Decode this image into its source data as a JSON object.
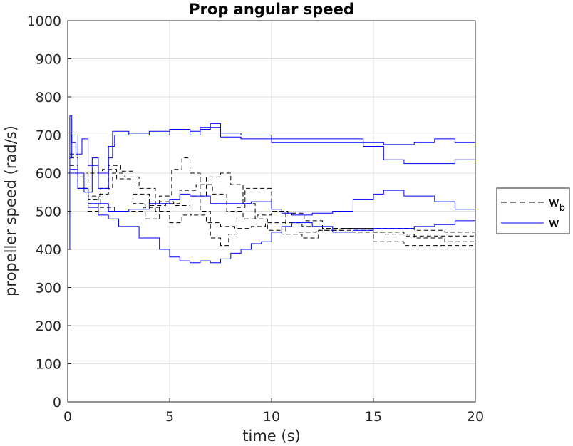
{
  "chart_data": {
    "type": "line",
    "title": "Prop angular speed",
    "xlabel": "time (s)",
    "ylabel": "propeller speed (rad/s)",
    "xlim": [
      0,
      20
    ],
    "ylim": [
      0,
      1000
    ],
    "x_ticks": [
      0,
      5,
      10,
      15,
      20
    ],
    "y_ticks": [
      0,
      100,
      200,
      300,
      400,
      500,
      600,
      700,
      800,
      900,
      1000
    ],
    "x_tick_labels": [
      "0",
      "5",
      "10",
      "15",
      "20"
    ],
    "y_tick_labels": [
      "0",
      "100",
      "200",
      "300",
      "400",
      "500",
      "600",
      "700",
      "800",
      "900",
      "1000"
    ],
    "grid": true,
    "legend": {
      "placement": "outside-right",
      "entries": [
        {
          "label": "w",
          "subscript": "b",
          "style": "dashed",
          "color": "#000000"
        },
        {
          "label": "w",
          "subscript": "",
          "style": "solid",
          "color": "#0000ff"
        }
      ]
    },
    "series": [
      {
        "group": "w_b",
        "color": "#000000",
        "style": "dashed",
        "x": [
          0.1,
          0.5,
          1.0,
          1.6,
          2.3,
          3.0,
          3.7,
          4.5,
          5.2,
          6.0,
          6.8,
          7.5,
          8.2,
          9.0,
          9.7,
          10.5,
          11.5,
          12.5,
          14,
          15.5,
          17,
          18.5,
          20
        ],
        "y": [
          600,
          560,
          530,
          510,
          500,
          500,
          510,
          525,
          515,
          490,
          470,
          460,
          455,
          460,
          470,
          470,
          460,
          455,
          455,
          455,
          450,
          445,
          430
        ]
      },
      {
        "group": "w_b",
        "color": "#000000",
        "style": "dashed",
        "x": [
          0.1,
          0.5,
          1.0,
          1.7,
          2.4,
          3.2,
          4.0,
          4.8,
          5.5,
          6.3,
          7.1,
          7.8,
          8.6,
          9.3,
          10.0,
          10.8,
          11.6,
          12.5,
          14,
          15.5,
          17,
          18.5,
          20
        ],
        "y": [
          620,
          590,
          600,
          610,
          585,
          545,
          515,
          520,
          555,
          570,
          545,
          500,
          480,
          490,
          500,
          495,
          475,
          455,
          445,
          440,
          430,
          420,
          415
        ]
      },
      {
        "group": "w_b",
        "color": "#000000",
        "style": "dashed",
        "x": [
          0.1,
          0.5,
          1.0,
          1.6,
          2.2,
          2.8,
          3.5,
          4.3,
          5.0,
          5.6,
          6.1,
          6.8,
          7.5,
          8.0,
          8.6,
          9.2,
          9.8,
          10.5,
          11.3,
          12.2,
          13.5,
          15,
          16.5,
          18,
          20
        ],
        "y": [
          650,
          600,
          540,
          560,
          600,
          590,
          560,
          500,
          470,
          490,
          540,
          590,
          600,
          570,
          520,
          480,
          450,
          440,
          445,
          450,
          450,
          445,
          435,
          435,
          430
        ]
      },
      {
        "group": "w_b",
        "color": "#000000",
        "style": "dashed",
        "x": [
          0.1,
          0.5,
          1.0,
          1.5,
          2.0,
          2.6,
          3.2,
          3.8,
          4.5,
          5.1,
          5.6,
          6.0,
          6.5,
          7.0,
          7.5,
          7.9,
          8.3,
          8.7,
          9.3,
          10.0,
          10.7,
          11.5,
          12.3,
          13.5,
          15,
          16.5,
          18,
          20
        ],
        "y": [
          640,
          560,
          500,
          545,
          620,
          605,
          520,
          480,
          540,
          610,
          640,
          600,
          500,
          430,
          410,
          440,
          510,
          560,
          560,
          500,
          440,
          430,
          450,
          455,
          420,
          410,
          410,
          415
        ]
      },
      {
        "group": "w",
        "color": "#0000ff",
        "style": "solid",
        "x": [
          0.0,
          0.1,
          0.2,
          0.4,
          0.7,
          1.0,
          1.5,
          2.0,
          2.3,
          3.0,
          4.0,
          5.0,
          6.0,
          6.5,
          7.0,
          7.5,
          8.5,
          10.0,
          11.0,
          12.0,
          13.5,
          14.5,
          15.5,
          17.0,
          18.0,
          19.0,
          20.0
        ],
        "y": [
          400,
          750,
          680,
          650,
          690,
          620,
          600,
          670,
          700,
          705,
          710,
          715,
          710,
          715,
          720,
          705,
          700,
          690,
          690,
          690,
          690,
          680,
          675,
          680,
          690,
          680,
          660
        ]
      },
      {
        "group": "w",
        "color": "#0000ff",
        "style": "solid",
        "x": [
          0.1,
          0.2,
          0.5,
          0.8,
          1.2,
          1.5,
          2.0,
          2.2,
          3.0,
          4.0,
          5.0,
          6.0,
          6.5,
          7.0,
          7.5,
          8.5,
          10.0,
          11.0,
          12.0,
          13.5,
          14.5,
          15.5,
          16.5,
          18.0,
          19.0,
          20.0
        ],
        "y": [
          640,
          700,
          600,
          550,
          640,
          560,
          640,
          710,
          705,
          700,
          715,
          700,
          720,
          730,
          695,
          690,
          680,
          680,
          680,
          680,
          670,
          635,
          625,
          625,
          635,
          645
        ]
      },
      {
        "group": "w",
        "color": "#0000ff",
        "style": "solid",
        "x": [
          0.1,
          0.5,
          1.0,
          2.0,
          3.0,
          4.0,
          5.0,
          5.5,
          6.0,
          7.0,
          8.0,
          9.0,
          10.0,
          10.5,
          11.0,
          12.0,
          13.0,
          14.0,
          15.0,
          15.5,
          16.5,
          18.0,
          19.0,
          20.0
        ],
        "y": [
          600,
          560,
          520,
          500,
          505,
          520,
          530,
          545,
          540,
          520,
          520,
          525,
          505,
          495,
          490,
          495,
          500,
          530,
          545,
          555,
          540,
          525,
          505,
          530
        ]
      },
      {
        "group": "w",
        "color": "#0000ff",
        "style": "solid",
        "x": [
          0.1,
          0.5,
          1.0,
          1.5,
          2.0,
          2.5,
          3.5,
          4.5,
          5.0,
          5.5,
          6.0,
          6.5,
          7.0,
          7.5,
          8.0,
          8.5,
          9.0,
          9.5,
          10.0,
          10.5,
          11.0,
          12.0,
          13.0,
          14.0,
          15.0,
          16.0,
          17.0,
          18.0,
          19.0,
          20.0
        ],
        "y": [
          610,
          560,
          510,
          490,
          480,
          460,
          430,
          400,
          380,
          370,
          365,
          370,
          365,
          375,
          390,
          400,
          415,
          420,
          445,
          460,
          470,
          460,
          445,
          450,
          455,
          455,
          460,
          465,
          475,
          460
        ]
      }
    ]
  }
}
